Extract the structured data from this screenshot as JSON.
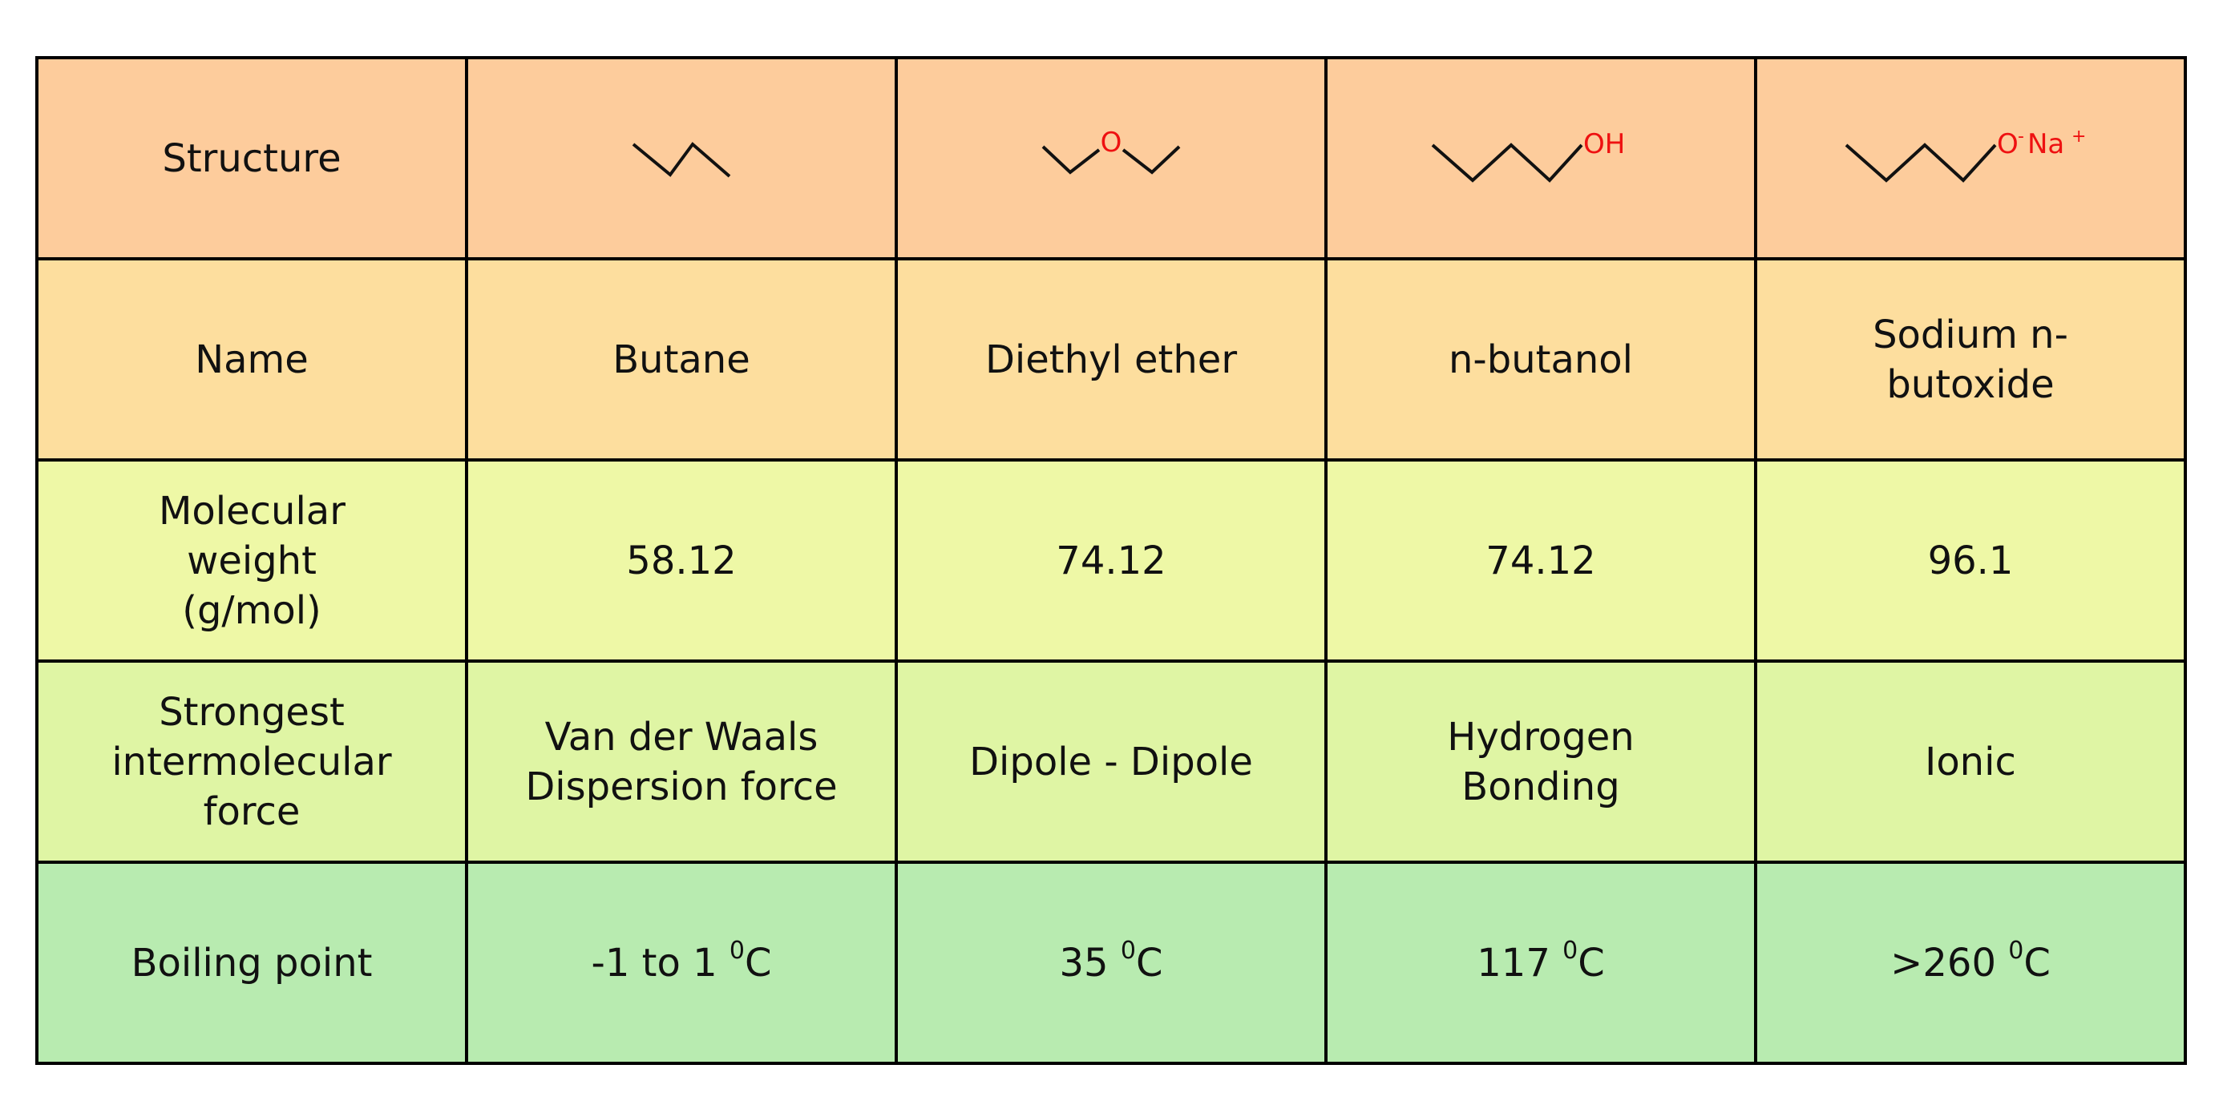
{
  "row_headers": {
    "structure": "Structure",
    "name": "Name",
    "molecular_weight": "Molecular weight (g/mol)",
    "intermolecular_force": "Strongest intermolecular force",
    "boiling_point": "Boiling point"
  },
  "compounds": [
    {
      "structure_labels": [],
      "name": "Butane",
      "molecular_weight": "58.12",
      "force": "Van der Waals Dispersion force",
      "bp_value": "-1 to 1",
      "bp_sup": "0",
      "bp_unit": "C"
    },
    {
      "structure_labels": [
        "O"
      ],
      "name": "Diethyl ether",
      "molecular_weight": "74.12",
      "force": "Dipole - Dipole",
      "bp_value": "35",
      "bp_sup": "0",
      "bp_unit": "C"
    },
    {
      "structure_labels": [
        "OH"
      ],
      "name": "n-butanol",
      "molecular_weight": "74.12",
      "force": "Hydrogen Bonding",
      "bp_value": "117",
      "bp_sup": "0",
      "bp_unit": "C"
    },
    {
      "structure_labels": [
        "O",
        "-",
        "Na",
        "+"
      ],
      "name": "Sodium n-butoxide",
      "molecular_weight": "96.1",
      "force": "Ionic",
      "bp_value": ">260",
      "bp_sup": "0",
      "bp_unit": "C"
    }
  ],
  "colors": {
    "structure_row": "#fdcc9c",
    "name_row": "#fdde9e",
    "molecular_weight_row": "#eef8a6",
    "force_row": "#dff5a4",
    "boiling_point_row": "#b8ebb0",
    "heteroatom": "#ee1111"
  }
}
